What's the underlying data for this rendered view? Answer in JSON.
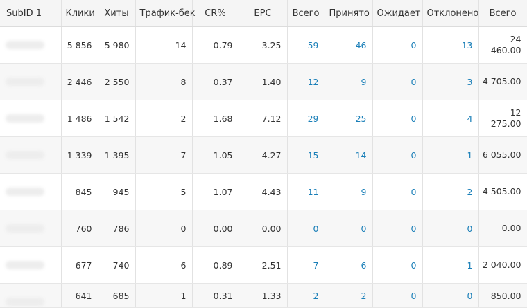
{
  "table": {
    "headers": [
      "SubID 1",
      "Клики",
      "Хиты",
      "Трафик-бек",
      "CR%",
      "EPC",
      "Всего",
      "Принято",
      "Ожидает",
      "Отклонено",
      "Всего"
    ],
    "rows": [
      {
        "subid": "",
        "clicks": "5 856",
        "hits": "5 980",
        "trafback": "14",
        "cr": "0.79",
        "epc": "3.25",
        "total": "59",
        "accepted": "46",
        "pending": "0",
        "rejected": "13",
        "sum": "24 460.00"
      },
      {
        "subid": "",
        "clicks": "2 446",
        "hits": "2 550",
        "trafback": "8",
        "cr": "0.37",
        "epc": "1.40",
        "total": "12",
        "accepted": "9",
        "pending": "0",
        "rejected": "3",
        "sum": "4 705.00"
      },
      {
        "subid": "",
        "clicks": "1 486",
        "hits": "1 542",
        "trafback": "2",
        "cr": "1.68",
        "epc": "7.12",
        "total": "29",
        "accepted": "25",
        "pending": "0",
        "rejected": "4",
        "sum": "12 275.00"
      },
      {
        "subid": "",
        "clicks": "1 339",
        "hits": "1 395",
        "trafback": "7",
        "cr": "1.05",
        "epc": "4.27",
        "total": "15",
        "accepted": "14",
        "pending": "0",
        "rejected": "1",
        "sum": "6 055.00"
      },
      {
        "subid": "",
        "clicks": "845",
        "hits": "945",
        "trafback": "5",
        "cr": "1.07",
        "epc": "4.43",
        "total": "11",
        "accepted": "9",
        "pending": "0",
        "rejected": "2",
        "sum": "4 505.00"
      },
      {
        "subid": "",
        "clicks": "760",
        "hits": "786",
        "trafback": "0",
        "cr": "0.00",
        "epc": "0.00",
        "total": "0",
        "accepted": "0",
        "pending": "0",
        "rejected": "0",
        "sum": "0.00"
      },
      {
        "subid": "",
        "clicks": "677",
        "hits": "740",
        "trafback": "6",
        "cr": "0.89",
        "epc": "2.51",
        "total": "7",
        "accepted": "6",
        "pending": "0",
        "rejected": "1",
        "sum": "2 040.00"
      },
      {
        "subid": "",
        "clicks": "641",
        "hits": "685",
        "trafback": "1",
        "cr": "0.31",
        "epc": "1.33",
        "total": "2",
        "accepted": "2",
        "pending": "0",
        "rejected": "0",
        "sum": "850.00"
      }
    ]
  },
  "colors": {
    "link": "#1a7fb8",
    "header_bg": "#f5f5f5",
    "alt_row_bg": "#f7f7f7"
  }
}
